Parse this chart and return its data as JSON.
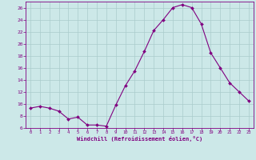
{
  "x": [
    0,
    1,
    2,
    3,
    4,
    5,
    6,
    7,
    8,
    9,
    10,
    11,
    12,
    13,
    14,
    15,
    16,
    17,
    18,
    19,
    20,
    21,
    22,
    23
  ],
  "y": [
    9.3,
    9.6,
    9.3,
    8.8,
    7.5,
    7.8,
    6.5,
    6.5,
    6.3,
    9.8,
    13.0,
    15.5,
    18.7,
    22.2,
    24.0,
    26.0,
    26.5,
    26.0,
    23.3,
    18.5,
    16.0,
    13.5,
    12.0,
    10.5
  ],
  "line_color": "#800080",
  "marker": "D",
  "marker_size": 2,
  "bg_color": "#cce8e8",
  "grid_color": "#aacccc",
  "xlabel": "Windchill (Refroidissement éolien,°C)",
  "ylim": [
    6,
    27
  ],
  "xlim": [
    -0.5,
    23.5
  ],
  "yticks": [
    6,
    8,
    10,
    12,
    14,
    16,
    18,
    20,
    22,
    24,
    26
  ],
  "xticks": [
    0,
    1,
    2,
    3,
    4,
    5,
    6,
    7,
    8,
    9,
    10,
    11,
    12,
    13,
    14,
    15,
    16,
    17,
    18,
    19,
    20,
    21,
    22,
    23
  ]
}
